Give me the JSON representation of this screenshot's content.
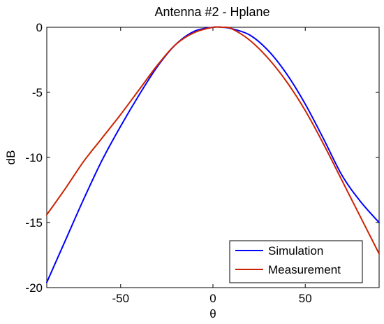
{
  "chart_data": {
    "type": "line",
    "title": "Antenna #2 - Hplane",
    "xlabel": "θ",
    "ylabel": "dB",
    "xlim": [
      -90,
      90
    ],
    "ylim": [
      -20,
      0
    ],
    "xticks": [
      -50,
      0,
      50
    ],
    "yticks": [
      0,
      -5,
      -10,
      -15,
      -20
    ],
    "grid": false,
    "legend_position": "bottom-right",
    "series": [
      {
        "name": "Simulation",
        "color": "#0000ff",
        "x": [
          -90,
          -80,
          -70,
          -60,
          -50,
          -40,
          -30,
          -20,
          -10,
          0,
          5,
          10,
          20,
          30,
          40,
          50,
          60,
          70,
          80,
          90
        ],
        "y": [
          -19.6,
          -16.4,
          -13.2,
          -10.2,
          -7.6,
          -5.2,
          -3.0,
          -1.3,
          -0.3,
          0.0,
          0.0,
          -0.1,
          -0.6,
          -1.8,
          -3.6,
          -5.9,
          -8.6,
          -11.4,
          -13.4,
          -15.0
        ]
      },
      {
        "name": "Measurement",
        "color": "#cc2200",
        "x": [
          -90,
          -80,
          -70,
          -60,
          -50,
          -40,
          -30,
          -20,
          -10,
          0,
          5,
          10,
          20,
          30,
          40,
          50,
          60,
          70,
          80,
          90
        ],
        "y": [
          -14.4,
          -12.4,
          -10.3,
          -8.5,
          -6.7,
          -4.8,
          -2.9,
          -1.3,
          -0.4,
          0.0,
          0.0,
          -0.1,
          -1.0,
          -2.4,
          -4.2,
          -6.4,
          -9.0,
          -11.8,
          -14.6,
          -17.4
        ]
      }
    ]
  }
}
